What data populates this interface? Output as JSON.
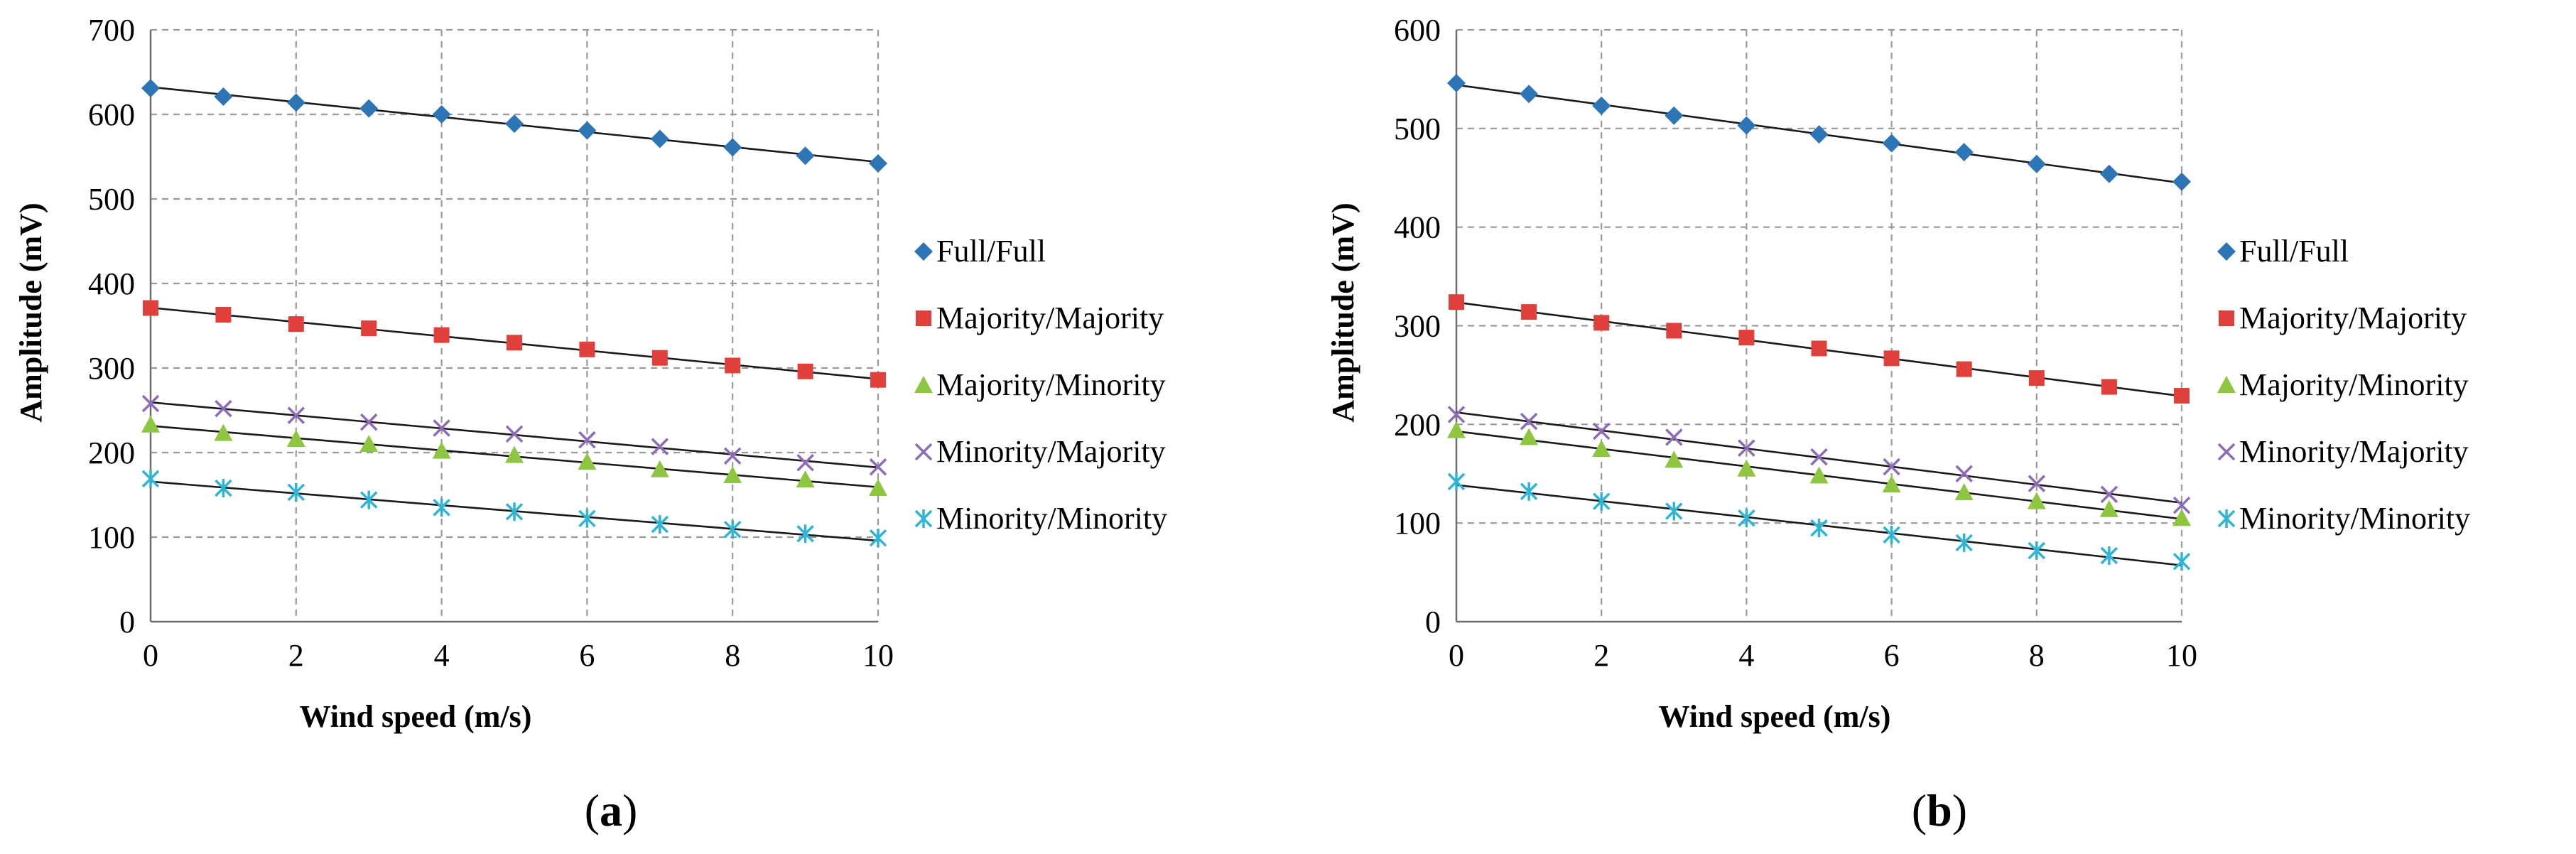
{
  "chart_data": [
    {
      "type": "scatter",
      "panel_label": [
        "(",
        "a",
        ")"
      ],
      "xlabel": "Wind speed (m/s)",
      "ylabel": "Amplitude (mV)",
      "xlim": [
        0,
        10
      ],
      "ylim": [
        0,
        700
      ],
      "xticks": [
        "0",
        "2",
        "4",
        "6",
        "8",
        "10"
      ],
      "yticks": [
        "0",
        "100",
        "200",
        "300",
        "400",
        "500",
        "600",
        "700"
      ],
      "grid": "dashed",
      "legend": "right",
      "trendlines": "linear",
      "x": [
        0,
        1,
        2,
        3,
        4,
        5,
        6,
        7,
        8,
        9,
        10
      ],
      "series": [
        {
          "name": "Full/Full",
          "marker": "diamond",
          "color": "#2e75b6",
          "values": [
            631,
            621,
            614,
            607,
            600,
            589,
            581,
            571,
            561,
            551,
            542
          ]
        },
        {
          "name": "Majority/Majority",
          "marker": "square",
          "color": "#e0403b",
          "values": [
            371,
            363,
            352,
            347,
            339,
            330,
            322,
            312,
            303,
            296,
            286
          ]
        },
        {
          "name": "Majority/Minority",
          "marker": "triangle",
          "color": "#8fc641",
          "values": [
            233,
            223,
            216,
            210,
            202,
            197,
            189,
            180,
            173,
            168,
            158
          ]
        },
        {
          "name": "Minority/Majority",
          "marker": "x",
          "color": "#8e6bb8",
          "values": [
            258,
            252,
            244,
            236,
            229,
            222,
            215,
            207,
            196,
            188,
            183
          ]
        },
        {
          "name": "Minority/Minority",
          "marker": "asterisk",
          "color": "#2eb5d6",
          "values": [
            169,
            158,
            153,
            144,
            135,
            130,
            122,
            115,
            109,
            104,
            99
          ]
        }
      ]
    },
    {
      "type": "scatter",
      "panel_label": [
        "(",
        "b",
        ")"
      ],
      "xlabel": "Wind speed (m/s)",
      "ylabel": "Amplitude (mV)",
      "xlim": [
        0,
        10
      ],
      "ylim": [
        0,
        600
      ],
      "xticks": [
        "0",
        "2",
        "4",
        "6",
        "8",
        "10"
      ],
      "yticks": [
        "0",
        "100",
        "200",
        "300",
        "400",
        "500",
        "600"
      ],
      "grid": "dashed",
      "legend": "right",
      "trendlines": "linear",
      "x": [
        0,
        1,
        2,
        3,
        4,
        5,
        6,
        7,
        8,
        9,
        10
      ],
      "series": [
        {
          "name": "Full/Full",
          "marker": "diamond",
          "color": "#2e75b6",
          "values": [
            546,
            535,
            523,
            513,
            503,
            494,
            485,
            476,
            464,
            454,
            446
          ]
        },
        {
          "name": "Majority/Majority",
          "marker": "square",
          "color": "#e0403b",
          "values": [
            324,
            314,
            303,
            295,
            288,
            277,
            267,
            256,
            247,
            238,
            229
          ]
        },
        {
          "name": "Majority/Minority",
          "marker": "triangle",
          "color": "#8fc641",
          "values": [
            194,
            187,
            175,
            164,
            155,
            148,
            139,
            131,
            122,
            114,
            105
          ]
        },
        {
          "name": "Minority/Majority",
          "marker": "x",
          "color": "#8e6bb8",
          "values": [
            210,
            203,
            193,
            187,
            176,
            167,
            157,
            150,
            140,
            129,
            118
          ]
        },
        {
          "name": "Minority/Minority",
          "marker": "asterisk",
          "color": "#2eb5d6",
          "values": [
            142,
            132,
            122,
            112,
            105,
            95,
            88,
            80,
            72,
            67,
            61
          ]
        }
      ]
    }
  ]
}
